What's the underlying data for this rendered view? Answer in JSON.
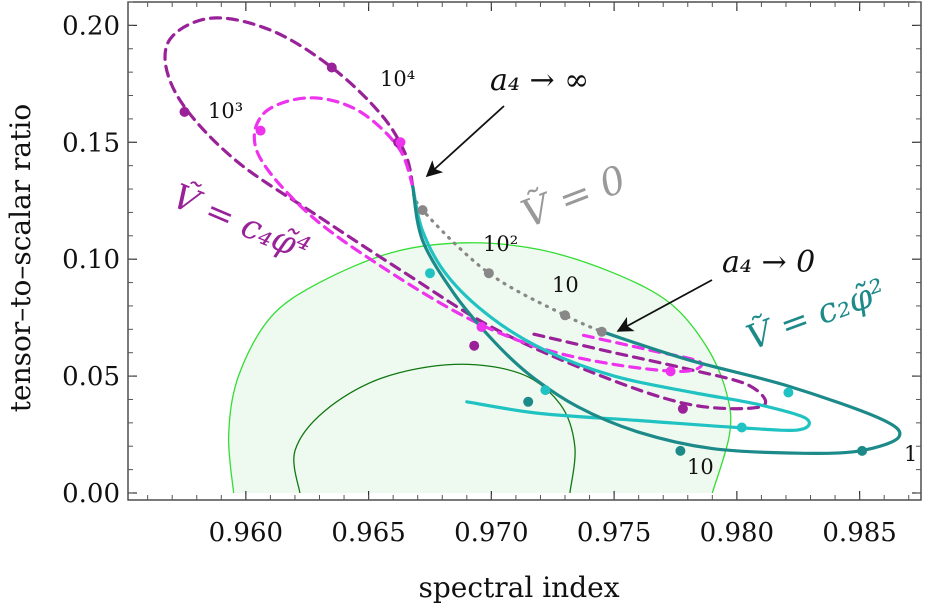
{
  "chart_data": {
    "type": "line",
    "xlabel": "spectral index",
    "ylabel": "tensor–to–scalar ratio",
    "xlim": [
      0.9552,
      0.9875
    ],
    "ylim": [
      -0.003,
      0.21
    ],
    "x_ticks": [
      0.96,
      0.965,
      0.97,
      0.975,
      0.98,
      0.985
    ],
    "x_tick_labels": [
      "0.960",
      "0.965",
      "0.970",
      "0.975",
      "0.980",
      "0.985"
    ],
    "y_ticks": [
      0.0,
      0.05,
      0.1,
      0.15,
      0.2
    ],
    "y_tick_labels": [
      "0.00",
      "0.05",
      "0.10",
      "0.15",
      "0.20"
    ],
    "regions": [
      {
        "style": "outer-contour",
        "color": "#33dd33",
        "fill": "#eefaf0",
        "points": [
          [
            0.9595,
            0.0
          ],
          [
            0.9593,
            0.025
          ],
          [
            0.9597,
            0.05
          ],
          [
            0.961,
            0.075
          ],
          [
            0.963,
            0.09
          ],
          [
            0.966,
            0.103
          ],
          [
            0.969,
            0.107
          ],
          [
            0.972,
            0.104
          ],
          [
            0.975,
            0.094
          ],
          [
            0.9773,
            0.081
          ],
          [
            0.9788,
            0.062
          ],
          [
            0.9796,
            0.042
          ],
          [
            0.9797,
            0.025
          ],
          [
            0.979,
            0.0
          ]
        ]
      },
      {
        "style": "inner-contour",
        "color": "#117711",
        "fill": "none",
        "points": [
          [
            0.9622,
            0.0
          ],
          [
            0.962,
            0.018
          ],
          [
            0.9632,
            0.035
          ],
          [
            0.9655,
            0.049
          ],
          [
            0.9685,
            0.055
          ],
          [
            0.9712,
            0.051
          ],
          [
            0.9728,
            0.038
          ],
          [
            0.9734,
            0.02
          ],
          [
            0.9732,
            0.0
          ]
        ]
      }
    ],
    "series": [
      {
        "style": "dashed",
        "color": "#992299",
        "width": 3.2,
        "points": [
          [
            0.9668,
            0.131
          ],
          [
            0.9665,
            0.145
          ],
          [
            0.9655,
            0.162
          ],
          [
            0.9635,
            0.182
          ],
          [
            0.961,
            0.198
          ],
          [
            0.9585,
            0.203
          ],
          [
            0.9568,
            0.192
          ],
          [
            0.9572,
            0.17
          ],
          [
            0.9595,
            0.143
          ],
          [
            0.963,
            0.118
          ],
          [
            0.9665,
            0.094
          ],
          [
            0.97,
            0.071
          ],
          [
            0.974,
            0.052
          ],
          [
            0.978,
            0.038
          ],
          [
            0.981,
            0.037
          ],
          [
            0.9805,
            0.046
          ],
          [
            0.978,
            0.053
          ],
          [
            0.975,
            0.06
          ],
          [
            0.9717,
            0.068
          ]
        ],
        "markers": [
          [
            0.9635,
            0.182
          ],
          [
            0.9575,
            0.163
          ],
          [
            0.9662,
            0.15
          ],
          [
            0.9693,
            0.063
          ],
          [
            0.9778,
            0.036
          ]
        ]
      },
      {
        "style": "dashed",
        "color": "#ee33ee",
        "width": 3.2,
        "points": [
          [
            0.9668,
            0.131
          ],
          [
            0.9662,
            0.148
          ],
          [
            0.9645,
            0.164
          ],
          [
            0.9625,
            0.169
          ],
          [
            0.9607,
            0.162
          ],
          [
            0.9605,
            0.145
          ],
          [
            0.9625,
            0.12
          ],
          [
            0.9655,
            0.097
          ],
          [
            0.969,
            0.075
          ],
          [
            0.972,
            0.062
          ],
          [
            0.975,
            0.055
          ],
          [
            0.9778,
            0.052
          ],
          [
            0.9785,
            0.056
          ],
          [
            0.9765,
            0.061
          ],
          [
            0.9735,
            0.068
          ]
        ],
        "markers": [
          [
            0.9606,
            0.155
          ],
          [
            0.9663,
            0.15
          ],
          [
            0.9696,
            0.071
          ],
          [
            0.9773,
            0.052
          ]
        ]
      },
      {
        "style": "dotted",
        "color": "#888888",
        "width": 3.2,
        "points": [
          [
            0.9668,
            0.131
          ],
          [
            0.9672,
            0.121
          ],
          [
            0.9699,
            0.094
          ],
          [
            0.973,
            0.076
          ],
          [
            0.9745,
            0.069
          ]
        ],
        "markers": [
          [
            0.9672,
            0.121
          ],
          [
            0.9699,
            0.094
          ],
          [
            0.973,
            0.076
          ],
          [
            0.9745,
            0.069
          ]
        ]
      },
      {
        "style": "solid",
        "color": "#21c2c2",
        "width": 3.2,
        "points": [
          [
            0.9668,
            0.131
          ],
          [
            0.9672,
            0.112
          ],
          [
            0.9682,
            0.093
          ],
          [
            0.97,
            0.075
          ],
          [
            0.9722,
            0.061
          ],
          [
            0.975,
            0.05
          ],
          [
            0.9782,
            0.043
          ],
          [
            0.9808,
            0.038
          ],
          [
            0.9828,
            0.032
          ],
          [
            0.9825,
            0.027
          ],
          [
            0.98,
            0.028
          ],
          [
            0.976,
            0.031
          ],
          [
            0.972,
            0.034
          ],
          [
            0.969,
            0.039
          ]
        ],
        "markers": [
          [
            0.9675,
            0.094
          ],
          [
            0.9722,
            0.044
          ],
          [
            0.9802,
            0.028
          ],
          [
            0.9821,
            0.043
          ]
        ]
      },
      {
        "style": "solid",
        "color": "#1d8a8a",
        "width": 3.2,
        "points": [
          [
            0.9668,
            0.131
          ],
          [
            0.9672,
            0.108
          ],
          [
            0.9685,
            0.085
          ],
          [
            0.97,
            0.066
          ],
          [
            0.9715,
            0.051
          ],
          [
            0.9735,
            0.037
          ],
          [
            0.976,
            0.026
          ],
          [
            0.979,
            0.019
          ],
          [
            0.9825,
            0.017
          ],
          [
            0.985,
            0.018
          ],
          [
            0.9866,
            0.024
          ],
          [
            0.9858,
            0.032
          ],
          [
            0.982,
            0.046
          ],
          [
            0.978,
            0.057
          ],
          [
            0.9745,
            0.069
          ]
        ],
        "markers": [
          [
            0.9715,
            0.039
          ],
          [
            0.9777,
            0.018
          ],
          [
            0.9851,
            0.018
          ]
        ]
      }
    ],
    "annotations": [
      {
        "text": "a₄ → ∞"
      },
      {
        "text": "a₄ → 0"
      },
      {
        "text": "Ṽ = 0"
      },
      {
        "text": "Ṽ = c₄φ̃⁴"
      },
      {
        "text": "Ṽ = c₂φ̃²"
      },
      {
        "text": "10⁴"
      },
      {
        "text": "10³"
      },
      {
        "text": "10²"
      },
      {
        "text": "10"
      },
      {
        "text": "10"
      },
      {
        "text": "1"
      }
    ]
  }
}
